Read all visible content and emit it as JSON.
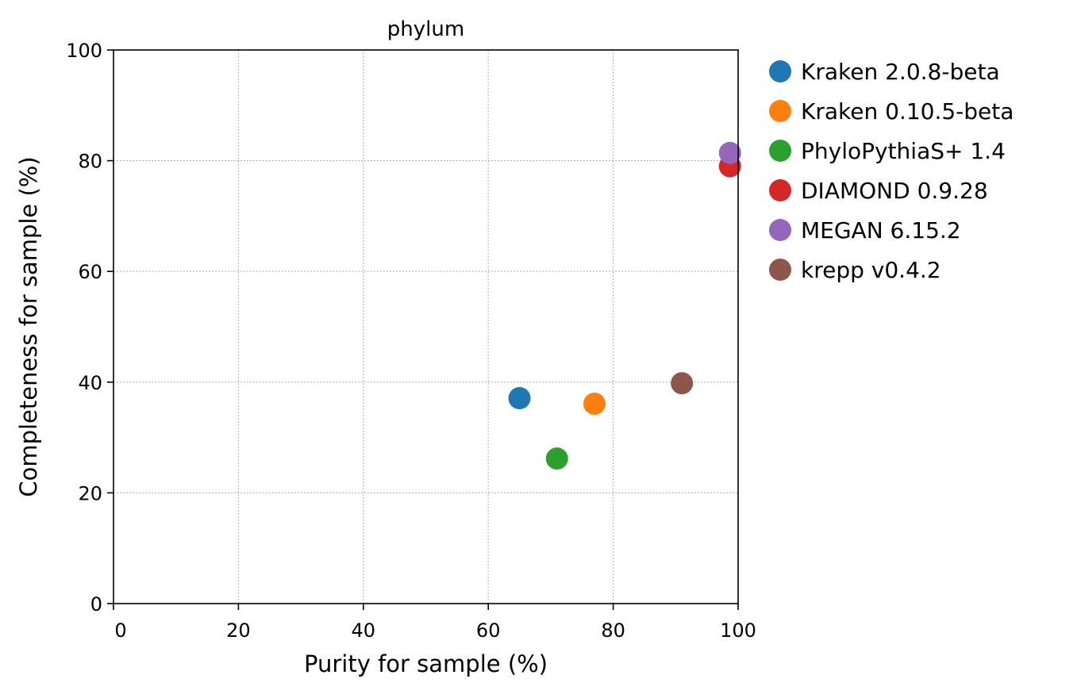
{
  "chart_data": {
    "type": "scatter",
    "title": "phylum",
    "xlabel": "Purity for sample (%)",
    "ylabel": "Completeness for sample (%)",
    "xlim": [
      0,
      100
    ],
    "ylim": [
      0,
      100
    ],
    "xticks": [
      "0",
      "20",
      "40",
      "60",
      "80",
      "100"
    ],
    "yticks": [
      "0",
      "20",
      "40",
      "60",
      "80",
      "100"
    ],
    "grid": true,
    "legend_position": "outside-right",
    "series": [
      {
        "name": "Kraken 2.0.8-beta",
        "color": "#1f77b4",
        "x": 65.0,
        "y": 37.1
      },
      {
        "name": "Kraken 0.10.5-beta",
        "color": "#ff7f0e",
        "x": 77.0,
        "y": 36.1
      },
      {
        "name": "PhyloPythiaS+ 1.4",
        "color": "#2ca02c",
        "x": 71.0,
        "y": 26.2
      },
      {
        "name": "DIAMOND 0.9.28",
        "color": "#d62728",
        "x": 98.7,
        "y": 79.0
      },
      {
        "name": "MEGAN 6.15.2",
        "color": "#9467bd",
        "x": 98.7,
        "y": 81.4
      },
      {
        "name": "krepp v0.4.2",
        "color": "#8c564b",
        "x": 91.0,
        "y": 39.8
      }
    ]
  }
}
